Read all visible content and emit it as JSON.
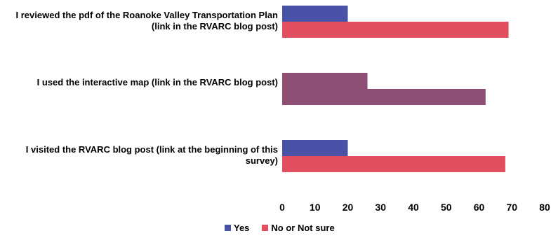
{
  "chart_data": {
    "type": "bar",
    "orientation": "horizontal",
    "categories": [
      "I reviewed the pdf of the Roanoke Valley Transportation Plan (link in the RVARC blog post)",
      "I used the interactive map (link in the RVARC blog post)",
      "I visited the RVARC blog post (link at the beginning of this survey)"
    ],
    "series": [
      {
        "name": "Yes",
        "values": [
          20,
          26,
          20
        ],
        "color": "#4a52a8"
      },
      {
        "name": "No or Not sure",
        "values": [
          69,
          62,
          68
        ],
        "color": "#e24f5f"
      }
    ],
    "xlim": [
      0,
      80
    ],
    "xticks": [
      "0",
      "10",
      "20",
      "30",
      "40",
      "50",
      "60",
      "70",
      "80"
    ],
    "grid": false,
    "legend_position": "bottom",
    "title": "",
    "xlabel": "",
    "ylabel": ""
  }
}
